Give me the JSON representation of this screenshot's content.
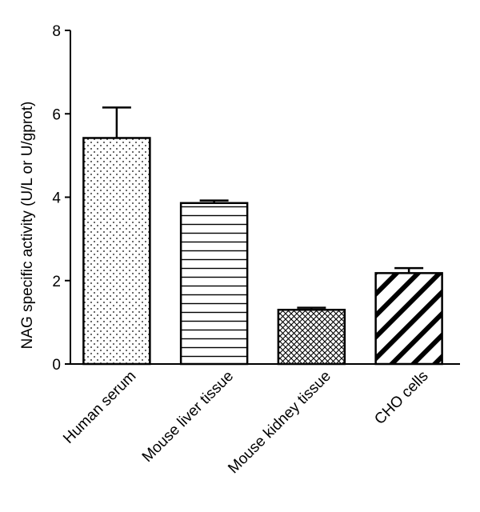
{
  "chart_data": {
    "type": "bar",
    "title": "",
    "xlabel": "",
    "ylabel": "NAG specific activity (U/L or U/gprot)",
    "ylim": [
      0,
      8
    ],
    "yticks": [
      0,
      2,
      4,
      6,
      8
    ],
    "grid": false,
    "categories": [
      "Human serum",
      "Mouse liver tissue",
      "Mouse kidney tissue",
      "CHO cells"
    ],
    "values": [
      5.42,
      3.86,
      1.3,
      2.18
    ],
    "errors": [
      0.73,
      0.06,
      0.05,
      0.12
    ],
    "fill_patterns": [
      "dots",
      "horizontal-lines",
      "crosshatch",
      "diagonal-stripes"
    ]
  }
}
